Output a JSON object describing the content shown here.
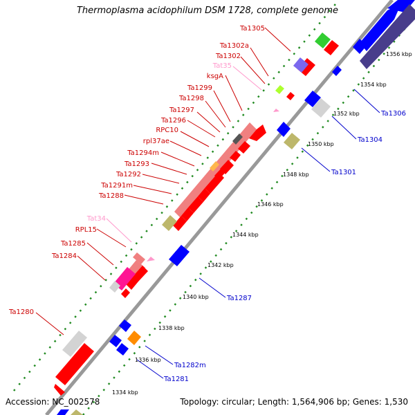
{
  "title": "Thermoplasma acidophilum DSM 1728, complete genome",
  "footer": {
    "accession": "Accession: NC_002578",
    "topology": "Topology: circular; Length: 1,564,906 bp; Genes: 1,530"
  },
  "colors": {
    "forward_gene": "#ff0000",
    "reverse_gene": "#0000ff",
    "forward_rna": "#f08080",
    "reverse_rna": "#7b68ee",
    "forward_label": "#cc0000",
    "reverse_label": "#0000cc",
    "trna_label": "#ff99cc",
    "grey_feature": "#d3d3d3",
    "khaki_feature": "#bdb76b",
    "magenta_feature": "#ff1493",
    "green_feature": "#32cd32",
    "orange_feature": "#ff8c00",
    "lime_feature": "#adff2f",
    "backbone": "#999999",
    "dots": "#228b22",
    "slate_feature": "#483d8b"
  },
  "ticks": [
    "1334 kbp",
    "1336 kbp",
    "1338 kbp",
    "1340 kbp",
    "1342 kbp",
    "1344 kbp",
    "1346 kbp",
    "1348 kbp",
    "1350 kbp",
    "1352 kbp",
    "1354 kbp",
    "1356 kbp"
  ],
  "left_labels": [
    {
      "text": "Ta1305",
      "kind": "gene"
    },
    {
      "text": "Ta1302a",
      "kind": "gene"
    },
    {
      "text": "Ta1302",
      "kind": "gene"
    },
    {
      "text": "Tat35",
      "kind": "trna"
    },
    {
      "text": "ksgA",
      "kind": "gene"
    },
    {
      "text": "Ta1299",
      "kind": "gene"
    },
    {
      "text": "Ta1298",
      "kind": "gene"
    },
    {
      "text": "Ta1297",
      "kind": "gene"
    },
    {
      "text": "Ta1296",
      "kind": "gene"
    },
    {
      "text": "RPC10",
      "kind": "gene"
    },
    {
      "text": "rpl37ae",
      "kind": "gene"
    },
    {
      "text": "Ta1294m",
      "kind": "gene"
    },
    {
      "text": "Ta1293",
      "kind": "gene"
    },
    {
      "text": "Ta1292",
      "kind": "gene"
    },
    {
      "text": "Ta1291m",
      "kind": "gene"
    },
    {
      "text": "Ta1288",
      "kind": "gene"
    },
    {
      "text": "Tat34",
      "kind": "trna"
    },
    {
      "text": "RPL15",
      "kind": "gene"
    },
    {
      "text": "Ta1285",
      "kind": "gene"
    },
    {
      "text": "Ta1284",
      "kind": "gene"
    },
    {
      "text": "Ta1280",
      "kind": "gene"
    }
  ],
  "right_labels": [
    {
      "text": "Ta1306"
    },
    {
      "text": "Ta1304"
    },
    {
      "text": "Ta1301"
    },
    {
      "text": "Ta1287"
    },
    {
      "text": "Ta1282m"
    },
    {
      "text": "Ta1281"
    }
  ]
}
